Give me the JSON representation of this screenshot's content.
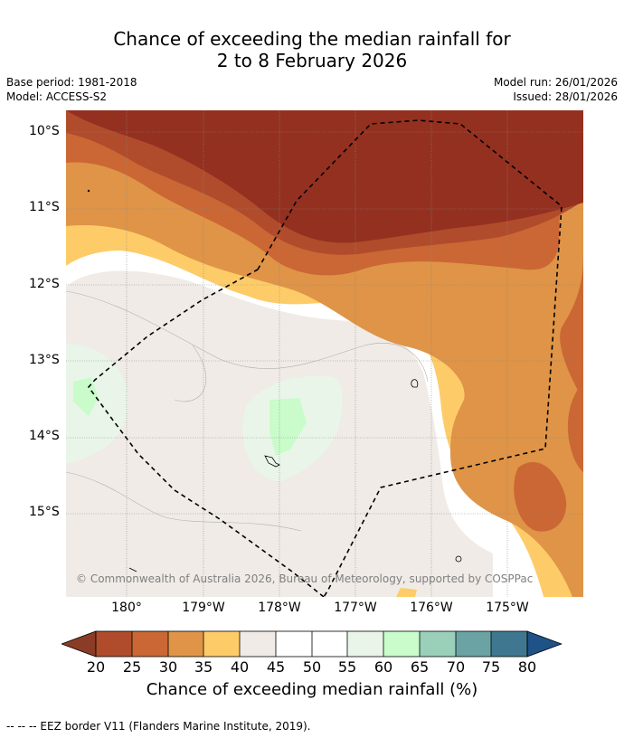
{
  "title": {
    "line1": "Chance of exceeding the median rainfall for",
    "line2": "2 to 8 February 2026"
  },
  "meta": {
    "base_period": "Base period: 1981-2018",
    "model": "Model: ACCESS-S2",
    "model_run": "Model run: 26/01/2026",
    "issued": "Issued: 28/01/2026"
  },
  "map": {
    "lat_labels": [
      "10°S",
      "11°S",
      "12°S",
      "13°S",
      "14°S",
      "15°S"
    ],
    "lon_labels": [
      "180°",
      "179°W",
      "178°W",
      "177°W",
      "176°W",
      "175°W"
    ],
    "copyright": "© Commonwealth of Australia 2026, Bureau of Meteorology, supported by COSPPac",
    "colors": {
      "p20_25": "#943020",
      "p25_30": "#b04c2b",
      "p30_35": "#cb6734",
      "p35_40": "#df9447",
      "p40_45": "#fdcc68",
      "p45_50": "#f0ebe6",
      "p50_55": "#ffffff",
      "p55_60": "#ffffff",
      "p60_65": "#e9f5e8",
      "p65_70": "#c9fcca",
      "eez_border": "#000000"
    }
  },
  "colorbar": {
    "ticks": [
      "20",
      "25",
      "30",
      "35",
      "40",
      "45",
      "50",
      "55",
      "60",
      "65",
      "70",
      "75",
      "80"
    ],
    "under_color": "#8b3c26",
    "over_color": "#1f5287",
    "bin_colors": [
      "#b04c2b",
      "#cb6734",
      "#df9447",
      "#fdcc68",
      "#f0ebe6",
      "#ffffff",
      "#ffffff",
      "#e9f5e8",
      "#c9fcca",
      "#9acfba",
      "#6ba3a5",
      "#3f7790"
    ],
    "label": "Chance of exceeding median rainfall (%)"
  },
  "footnote": "--  --  -- EEZ border V11 (Flanders Marine Institute, 2019)."
}
